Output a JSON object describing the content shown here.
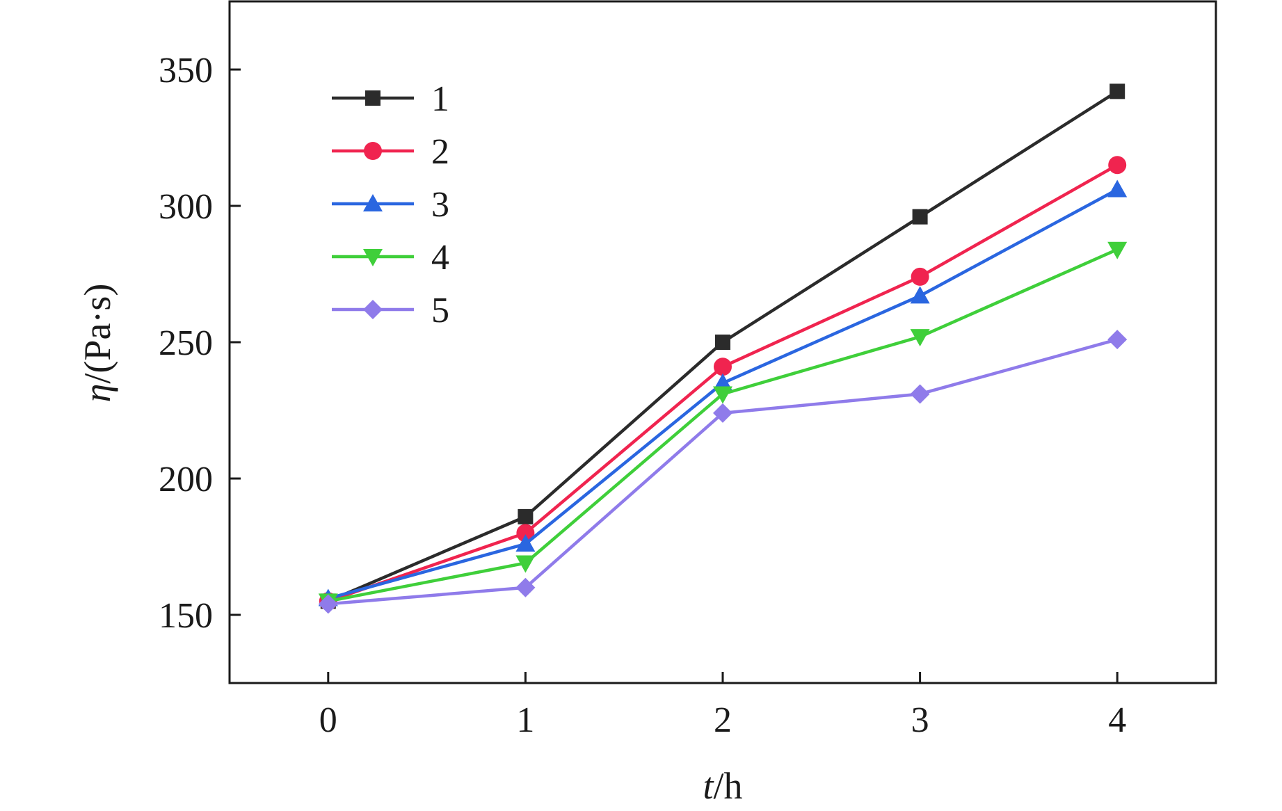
{
  "chart_data": {
    "type": "line",
    "x": [
      0,
      1,
      2,
      3,
      4
    ],
    "x_ticks": [
      "0",
      "1",
      "2",
      "3",
      "4"
    ],
    "xlim": [
      -0.5,
      4.5
    ],
    "ylim": [
      125,
      375
    ],
    "y_ticks": [
      "150",
      "200",
      "250",
      "300",
      "350"
    ],
    "xlabel": {
      "var": "t",
      "unit": "/h"
    },
    "ylabel": {
      "var": "η",
      "unit": "/(Pa·s)"
    },
    "legend_position": "top-left",
    "series": [
      {
        "name": "1",
        "color": "#2b2b2b",
        "marker": "square",
        "values": [
          155,
          186,
          250,
          296,
          342
        ]
      },
      {
        "name": "2",
        "color": "#f0244f",
        "marker": "circle",
        "values": [
          155,
          180,
          241,
          274,
          315
        ]
      },
      {
        "name": "3",
        "color": "#2a66e0",
        "marker": "triangle-up",
        "values": [
          156,
          176,
          235,
          267,
          306
        ]
      },
      {
        "name": "4",
        "color": "#3fcf3a",
        "marker": "triangle-down",
        "values": [
          155,
          169,
          231,
          252,
          284
        ]
      },
      {
        "name": "5",
        "color": "#8f7bea",
        "marker": "diamond",
        "values": [
          154,
          160,
          224,
          231,
          251
        ]
      }
    ]
  }
}
